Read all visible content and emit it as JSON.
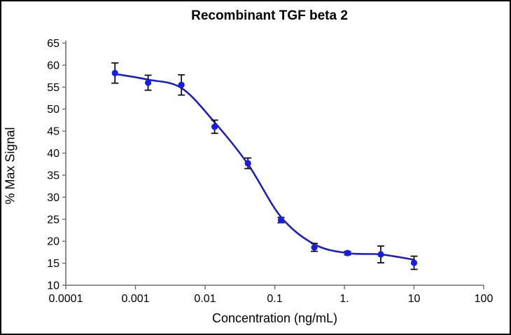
{
  "chart_data": {
    "type": "scatter",
    "title": "Recombinant TGF beta 2",
    "xlabel": "Concentration (ng/mL)",
    "ylabel": "% Max Signal",
    "x_scale": "log",
    "xlim": [
      0.0001,
      100
    ],
    "ylim": [
      10,
      65
    ],
    "grid": false,
    "legend": "none",
    "x_ticks": [
      0.0001,
      0.001,
      0.01,
      0.1,
      1,
      10,
      100
    ],
    "x_tick_labels": [
      "0.0001",
      "0.001",
      "0.01",
      "0.1",
      "1.",
      "10",
      "100"
    ],
    "y_ticks": [
      10,
      15,
      20,
      25,
      30,
      35,
      40,
      45,
      50,
      55,
      60,
      65
    ],
    "y_tick_labels": [
      "10",
      "15",
      "20",
      "25",
      "30",
      "35",
      "40",
      "45",
      "50",
      "55",
      "60",
      "65"
    ],
    "series": [
      {
        "name": "Recombinant TGF beta 2",
        "marker": "circle",
        "points": [
          {
            "x": 0.000508,
            "y": 58.2,
            "err": 2.3
          },
          {
            "x": 0.00152,
            "y": 56.0,
            "err": 1.7
          },
          {
            "x": 0.00457,
            "y": 55.5,
            "err": 2.3
          },
          {
            "x": 0.0137,
            "y": 46.0,
            "err": 1.5
          },
          {
            "x": 0.0412,
            "y": 37.7,
            "err": 1.2
          },
          {
            "x": 0.123,
            "y": 24.8,
            "err": 0.6
          },
          {
            "x": 0.37,
            "y": 18.6,
            "err": 0.9
          },
          {
            "x": 1.11,
            "y": 17.3,
            "err": 0.4
          },
          {
            "x": 3.33,
            "y": 17.0,
            "err": 1.9
          },
          {
            "x": 10,
            "y": 15.1,
            "err": 1.5
          }
        ]
      }
    ],
    "fit_curve": {
      "description": "4PL sigmoid fit drawn from first to last concentration",
      "points": [
        [
          0.000508,
          58.0
        ],
        [
          0.00152,
          56.7
        ],
        [
          0.00457,
          54.8
        ],
        [
          0.0137,
          47.0
        ],
        [
          0.0412,
          37.5
        ],
        [
          0.123,
          25.5
        ],
        [
          0.37,
          19.3
        ],
        [
          1.11,
          17.3
        ],
        [
          3.33,
          17.0
        ],
        [
          10,
          15.8
        ]
      ]
    },
    "colors": {
      "marker": "#1c1ce0",
      "curve": "#2222a8",
      "error_bar": "#111111",
      "axis": "#6f6f6f",
      "text": "#000000",
      "background": "#ffffff"
    }
  }
}
